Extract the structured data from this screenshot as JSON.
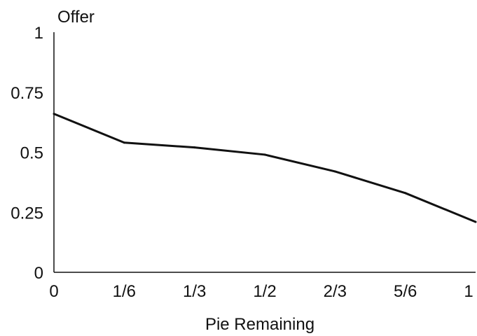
{
  "chart_data": {
    "type": "line",
    "title": "",
    "xlabel": "Pie Remaining",
    "ylabel": "Offer",
    "x_ticks": [
      "0",
      "1/6",
      "1/3",
      "1/2",
      "2/3",
      "5/6",
      "1"
    ],
    "y_ticks": [
      "0",
      "0.25",
      "0.5",
      "0.75",
      "1"
    ],
    "xlim": [
      0,
      1
    ],
    "ylim": [
      0,
      1
    ],
    "grid": false,
    "legend": "none",
    "series": [
      {
        "x": [
          0,
          0.1667,
          0.3333,
          0.5,
          0.6667,
          0.8333,
          1
        ],
        "values": [
          0.66,
          0.54,
          0.52,
          0.49,
          0.42,
          0.33,
          0.21
        ]
      }
    ],
    "line_color": "#111111"
  }
}
